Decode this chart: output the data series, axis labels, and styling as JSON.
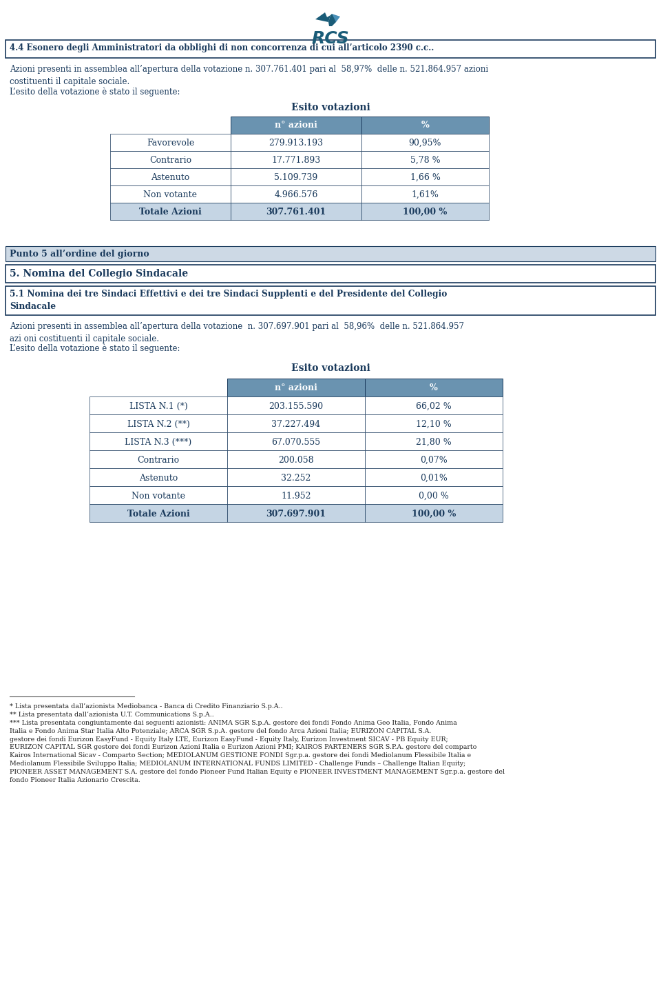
{
  "section_44_title": "4.4 Esonero degli Amministratori da obblighi di non concorrenza di cui all’articolo 2390 c.c..",
  "section_44_azioni_text": "Azioni presenti in assemblea all’apertura della votazione n. 307.761.401 pari al  58,97%  delle n. 521.864.957 azioni\ncostituenti il capitale sociale.",
  "section_44_esito_text": "L’esito della votazione è stato il seguente:",
  "esito_votazioni_label": "Esito votazioni",
  "table1_header": [
    "n° azioni",
    "%"
  ],
  "table1_rows": [
    [
      "Favorevole",
      "279.913.193",
      "90,95%"
    ],
    [
      "Contrario",
      "17.771.893",
      "5,78 %"
    ],
    [
      "Astenuto",
      "5.109.739",
      "1,66 %"
    ],
    [
      "Non votante",
      "4.966.576",
      "1,61%"
    ],
    [
      "Totale Azioni",
      "307.761.401",
      "100,00 %"
    ]
  ],
  "punto5_label": "Punto 5 all’ordine del giorno",
  "section5_title": "5. Nomina del Collegio Sindacale",
  "section51_title": "5.1 Nomina dei tre Sindaci Effettivi e dei tre Sindaci Supplenti e del Presidente del Collegio\nSindacale",
  "section51_azioni_text": "Azioni presenti in assemblea all’apertura della votazione  n. 307.697.901 pari al  58,96%  delle n. 521.864.957\nazi oni costituenti il capitale sociale.",
  "section51_esito_text": "L’esito della votazione è stato il seguente:",
  "table2_header": [
    "n° azioni",
    "%"
  ],
  "table2_rows": [
    [
      "LISTA N.1 (*)",
      "203.155.590",
      "66,02 %"
    ],
    [
      "LISTA N.2 (**)",
      "37.227.494",
      "12,10 %"
    ],
    [
      "LISTA N.3 (***)",
      "67.070.555",
      "21,80 %"
    ],
    [
      "Contrario",
      "200.058",
      "0,07%"
    ],
    [
      "Astenuto",
      "32.252",
      "0,01%"
    ],
    [
      "Non votante",
      "11.952",
      "0,00 %"
    ],
    [
      "Totale Azioni",
      "307.697.901",
      "100,00 %"
    ]
  ],
  "footnote1": "* Lista presentata dall’azionista Mediobanca - Banca di Credito Finanziario S.p.A..",
  "footnote2": "** Lista presentata dall’azionista U.T. Communications S.p.A..",
  "footnote3": "*** Lista presentata congiuntamente dai seguenti azionisti: ANIMA SGR S.p.A. gestore dei fondi Fondo Anima Geo Italia, Fondo Anima Italia e Fondo Anima Star Italia Alto Potenziale; ARCA SGR S.p.A. gestore del fondo Arca Azioni Italia; EURIZON CAPITAL S.A. gestore dei fondi Eurizon EasyFund - Equity Italy LTE, Eurizon EasyFund - Equity Italy, Eurizon Investment SICAV - PB Equity EUR; EURIZON CAPITAL SGR gestore dei fondi Eurizon Azioni Italia e Eurizon Azioni PMI; KAIROS PARTENERS SGR S.P.A. gestore del comparto Kairos International Sicav - Comparto Section; MEDIOLANUM GESTIONE FONDI Sgr.p.a. gestore dei fondi Mediolanum Flessibile Italia e Mediolanum Flessibile Sviluppo Italia; MEDIOLANUM INTERNATIONAL FUNDS LIMITED - Challenge Funds – Challenge Italian Equity; PIONEER ASSET MANAGEMENT S.A. gestore del fondo Pioneer Fund Italian Equity e PIONEER INVESTMENT MANAGEMENT Sgr.p.a. gestore del fondo Pioneer Italia Azionario Crescita.",
  "header_bg_color": "#6a93b0",
  "header_text_color": "#ffffff",
  "body_text_color": "#1a3a5c",
  "total_row_bg": "#c5d5e4",
  "border_color": "#1a3a5c",
  "punto5_bg": "#cdd9e5",
  "page_bg": "#ffffff"
}
